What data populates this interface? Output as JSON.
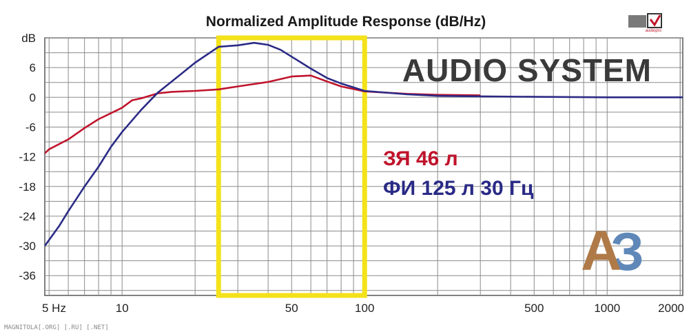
{
  "chart_data": {
    "type": "line",
    "title": "Normalized Amplitude Response (dB/Hz)",
    "xscale": "log",
    "xlim": [
      4.8,
      2050
    ],
    "ylim": [
      -40,
      12
    ],
    "grid": true,
    "x_ticks": [
      {
        "value": 5,
        "label": "5 Hz"
      },
      {
        "value": 10,
        "label": "10"
      },
      {
        "value": 50,
        "label": "50"
      },
      {
        "value": 100,
        "label": "100"
      },
      {
        "value": 500,
        "label": "500"
      },
      {
        "value": 1000,
        "label": "1000"
      },
      {
        "value": 2000,
        "label": "2000"
      }
    ],
    "y_ticks": [
      {
        "value": 12,
        "label": "dB"
      },
      {
        "value": 6,
        "label": "6"
      },
      {
        "value": 0,
        "label": "0"
      },
      {
        "value": -6,
        "label": "-6"
      },
      {
        "value": -12,
        "label": "-12"
      },
      {
        "value": -18,
        "label": "-18"
      },
      {
        "value": -24,
        "label": "-24"
      },
      {
        "value": -30,
        "label": "-30"
      },
      {
        "value": -36,
        "label": "-36"
      }
    ],
    "highlight_range": {
      "x": [
        25,
        100
      ],
      "color": "#f4e21a"
    },
    "series": [
      {
        "name": "ЗЯ 46 л",
        "color": "#c0142c",
        "points": [
          [
            4.8,
            -11.3
          ],
          [
            5,
            -10.5
          ],
          [
            6,
            -8.5
          ],
          [
            7,
            -6.2
          ],
          [
            8,
            -4.4
          ],
          [
            9,
            -3.2
          ],
          [
            10,
            -2.1
          ],
          [
            11,
            -0.6
          ],
          [
            12,
            -0.2
          ],
          [
            14,
            0.8
          ],
          [
            16,
            1.1
          ],
          [
            20,
            1.3
          ],
          [
            25,
            1.6
          ],
          [
            30,
            2.2
          ],
          [
            40,
            3.1
          ],
          [
            50,
            4.2
          ],
          [
            60,
            4.4
          ],
          [
            70,
            3.2
          ],
          [
            80,
            2.2
          ],
          [
            100,
            1.2
          ],
          [
            150,
            0.7
          ],
          [
            200,
            0.5
          ],
          [
            300,
            0.4
          ]
        ]
      },
      {
        "name": "ФИ 125 л 30 Гц",
        "color": "#2a2a86",
        "points": [
          [
            4.8,
            -30
          ],
          [
            5.5,
            -26
          ],
          [
            6,
            -23
          ],
          [
            7,
            -18
          ],
          [
            8,
            -14
          ],
          [
            9,
            -10
          ],
          [
            10,
            -7
          ],
          [
            12,
            -2.5
          ],
          [
            14,
            0.9
          ],
          [
            17,
            4.2
          ],
          [
            20,
            7
          ],
          [
            25,
            10.2
          ],
          [
            30,
            10.5
          ],
          [
            35,
            11
          ],
          [
            40,
            10.6
          ],
          [
            45,
            9.6
          ],
          [
            50,
            8.2
          ],
          [
            60,
            5.8
          ],
          [
            70,
            3.9
          ],
          [
            80,
            2.8
          ],
          [
            90,
            2
          ],
          [
            100,
            1.3
          ],
          [
            150,
            0.6
          ],
          [
            200,
            0.3
          ],
          [
            300,
            0.2
          ],
          [
            500,
            0.1
          ],
          [
            1000,
            0
          ],
          [
            2050,
            0
          ]
        ]
      }
    ]
  },
  "header": {
    "top_right_logo": "audiopro"
  },
  "annotations": {
    "brand": "AUDIO SYSTEM",
    "legend_line_1": "ЗЯ 46 л",
    "legend_line_2": "ФИ 125 л 30 Гц",
    "logo_a": "А",
    "logo_3": "З",
    "watermark": "MAGNITOLA[.ORG] [.RU] [.NET]"
  }
}
